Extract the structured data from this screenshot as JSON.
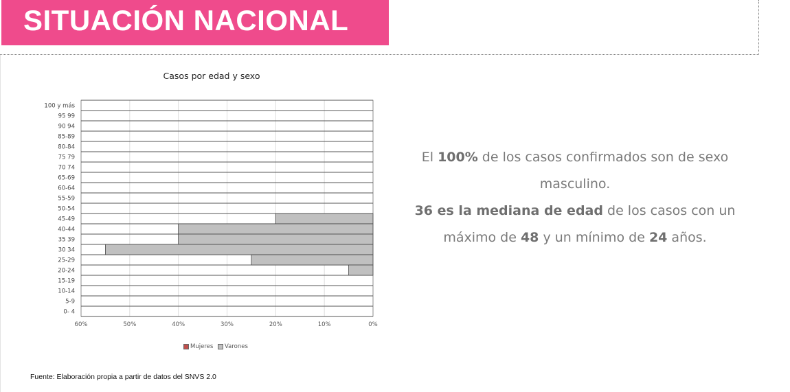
{
  "header": {
    "title": "SITUACIÓN NACIONAL",
    "accent_color": "#ef4b8c"
  },
  "chart_data": {
    "type": "bar",
    "orientation": "horizontal",
    "title": "Casos por edad y sexo",
    "categories": [
      "100 y más",
      "95 99",
      "90 94",
      "85-89",
      "80-84",
      "75 79",
      "70 74",
      "65-69",
      "60-64",
      "55-59",
      "50-54",
      "45-49",
      "40-44",
      "35 39",
      "30 34",
      "25-29",
      "20-24",
      "15-19",
      "10-14",
      "5-9",
      "0- 4"
    ],
    "series": [
      {
        "name": "Mujeres",
        "color": "#c0504d",
        "values": [
          0,
          0,
          0,
          0,
          0,
          0,
          0,
          0,
          0,
          0,
          0,
          0,
          0,
          0,
          0,
          0,
          0,
          0,
          0,
          0,
          0
        ]
      },
      {
        "name": "Varones",
        "color": "#c0c0c0",
        "values": [
          0,
          0,
          0,
          0,
          0,
          0,
          0,
          0,
          0,
          0,
          0,
          20,
          40,
          40,
          55,
          25,
          5,
          0,
          0,
          0,
          0
        ]
      }
    ],
    "x_ticks": [
      "60%",
      "50%",
      "40%",
      "30%",
      "20%",
      "10%",
      "0%"
    ],
    "xlim": [
      60,
      0
    ],
    "x_reversed": true,
    "grid": true,
    "legend_position": "bottom"
  },
  "info": {
    "p1_pre": "El ",
    "p1_bold": "100%",
    "p1_post": " de los casos confirmados son de sexo masculino.",
    "p2_bold1": "36 es la mediana de edad",
    "p2_mid": " de los casos con un máximo de ",
    "p2_bold2": "48",
    "p2_mid2": " y un mínimo de ",
    "p2_bold3": "24",
    "p2_post": " años."
  },
  "footer": {
    "source": "Fuente: Elaboración propia a partir de datos del SNVS 2.0"
  }
}
